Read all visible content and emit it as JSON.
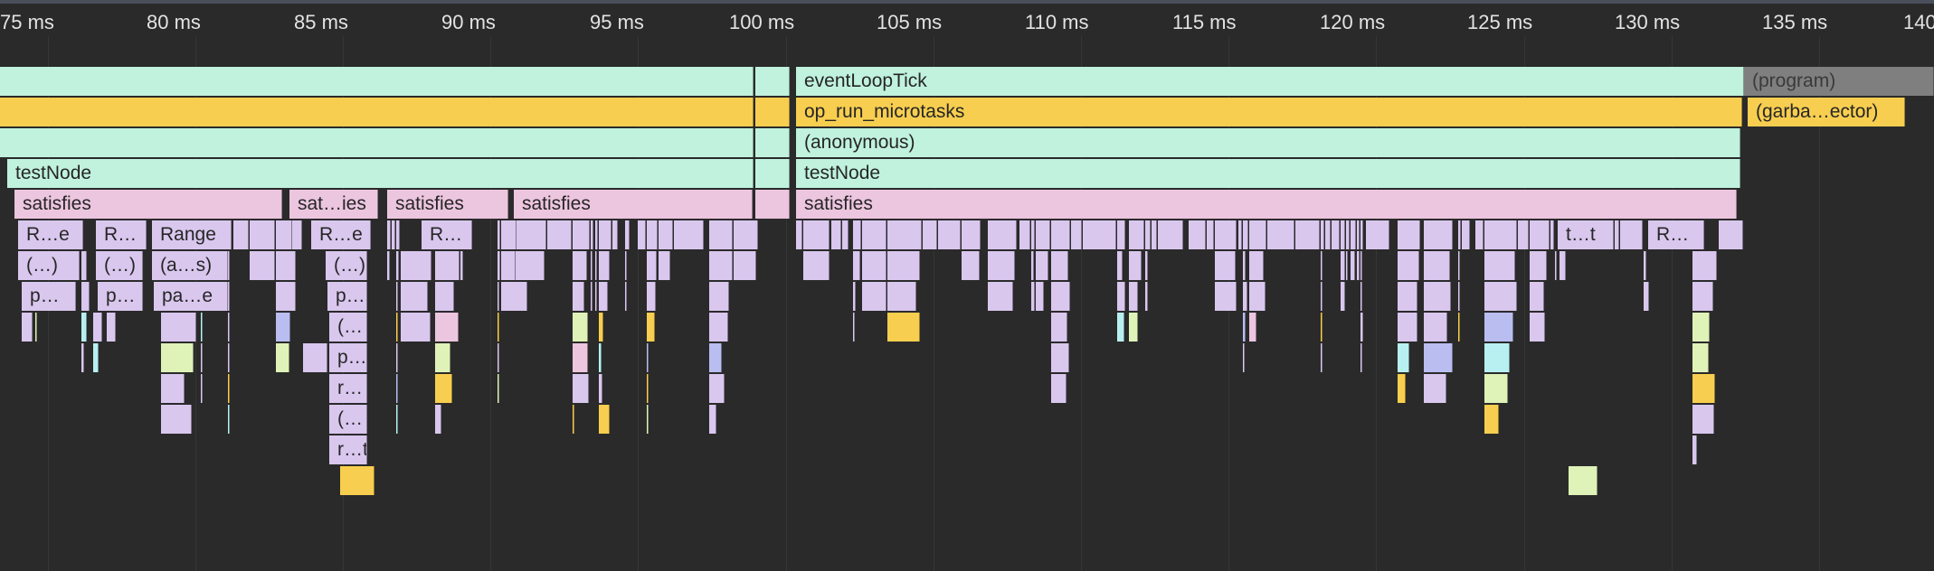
{
  "colors": {
    "teal": "#c0f2dd",
    "yellow": "#f7ce4f",
    "pink": "#ecc5df",
    "lavender": "#d9c7ee",
    "periwinkle": "#b9bdf0",
    "cyan": "#b8f0f2",
    "lime": "#dff2b8",
    "grey": "#7f7f7f",
    "background": "#2a2a2a",
    "ruler_border": "#4a4f5c"
  },
  "ruler": {
    "ticks": [
      "75 ms",
      "80 ms",
      "85 ms",
      "90 ms",
      "95 ms",
      "100 ms",
      "105 ms",
      "110 ms",
      "115 ms",
      "120 ms",
      "125 ms",
      "130 ms",
      "135 ms",
      "140"
    ]
  },
  "flame": {
    "row0_main": "eventLoopTick",
    "row0_idle": "(program)",
    "row1_main": "op_run_microtasks",
    "row1_gc": "(garba…ector)",
    "row2_main": "(anonymous)",
    "row3_left": "testNode",
    "row3_right": "testNode",
    "row4": [
      "satisfies",
      "sat…ies",
      "satisfies",
      "satisfies",
      "satisfies"
    ],
    "row5": [
      "R…e",
      "R…",
      "Range",
      "R…e",
      "R…",
      "t…t",
      "R…"
    ],
    "row6": [
      "(…)",
      "(…)",
      "(a…s)",
      "(…)"
    ],
    "row7": [
      "p…",
      "p…",
      "pa…e",
      "p…"
    ],
    "row8": [
      "(…"
    ],
    "row9": [
      "p…"
    ],
    "row10": [
      "r…"
    ],
    "row11": [
      "(…"
    ],
    "row12": [
      "r…t"
    ]
  }
}
